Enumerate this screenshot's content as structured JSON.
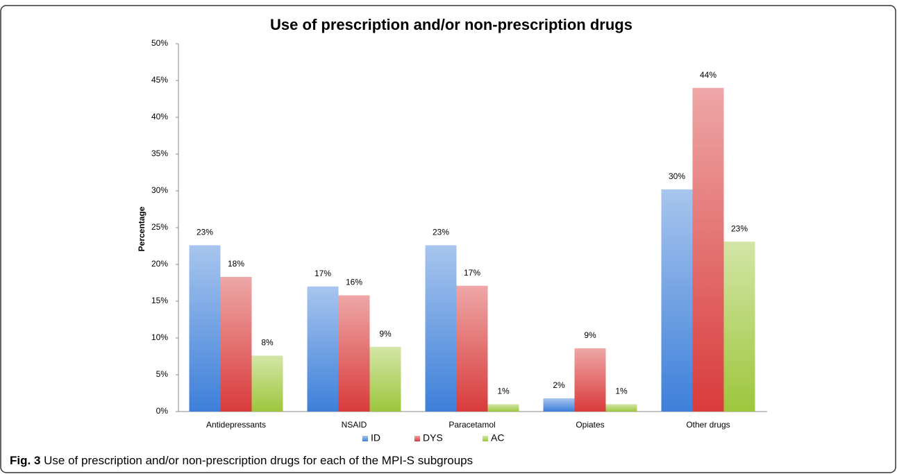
{
  "chart_data": {
    "type": "bar",
    "title": "Use of prescription and/or non-prescription drugs",
    "y_label": "Percentage",
    "categories": [
      "Antidepressants",
      "NSAID",
      "Paracetamol",
      "Opiates",
      "Other drugs"
    ],
    "series": [
      {
        "name": "ID",
        "color": "#3d7fd9",
        "values": [
          22.6,
          17.0,
          22.6,
          1.8,
          30.2
        ],
        "value_labels": [
          "23%",
          "17%",
          "23%",
          "2%",
          "30%"
        ]
      },
      {
        "name": "DYS",
        "color": "#d93b3b",
        "values": [
          18.3,
          15.8,
          17.1,
          8.6,
          44.0
        ],
        "value_labels": [
          "18%",
          "16%",
          "17%",
          "9%",
          "44%"
        ]
      },
      {
        "name": "AC",
        "color": "#9dc63c",
        "values": [
          7.6,
          8.8,
          1.0,
          1.0,
          23.1
        ],
        "value_labels": [
          "8%",
          "9%",
          "1%",
          "1%",
          "23%"
        ]
      }
    ],
    "ylim": [
      0,
      50
    ],
    "yticks": [
      {
        "value": 0,
        "label": "0%"
      },
      {
        "value": 5,
        "label": "5%"
      },
      {
        "value": 10,
        "label": "10%"
      },
      {
        "value": 15,
        "label": "15%"
      },
      {
        "value": 20,
        "label": "20%"
      },
      {
        "value": 25,
        "label": "25%"
      },
      {
        "value": 30,
        "label": "30%"
      },
      {
        "value": 35,
        "label": "35%"
      },
      {
        "value": 40,
        "label": "40%"
      },
      {
        "value": 45,
        "label": "45%"
      },
      {
        "value": 50,
        "label": "50%"
      }
    ],
    "grid": false,
    "legend": "bottom"
  },
  "caption": {
    "label": "Fig. 3",
    "text": "Use of prescription and/or non-prescription drugs for each of the MPI-S subgroups"
  }
}
